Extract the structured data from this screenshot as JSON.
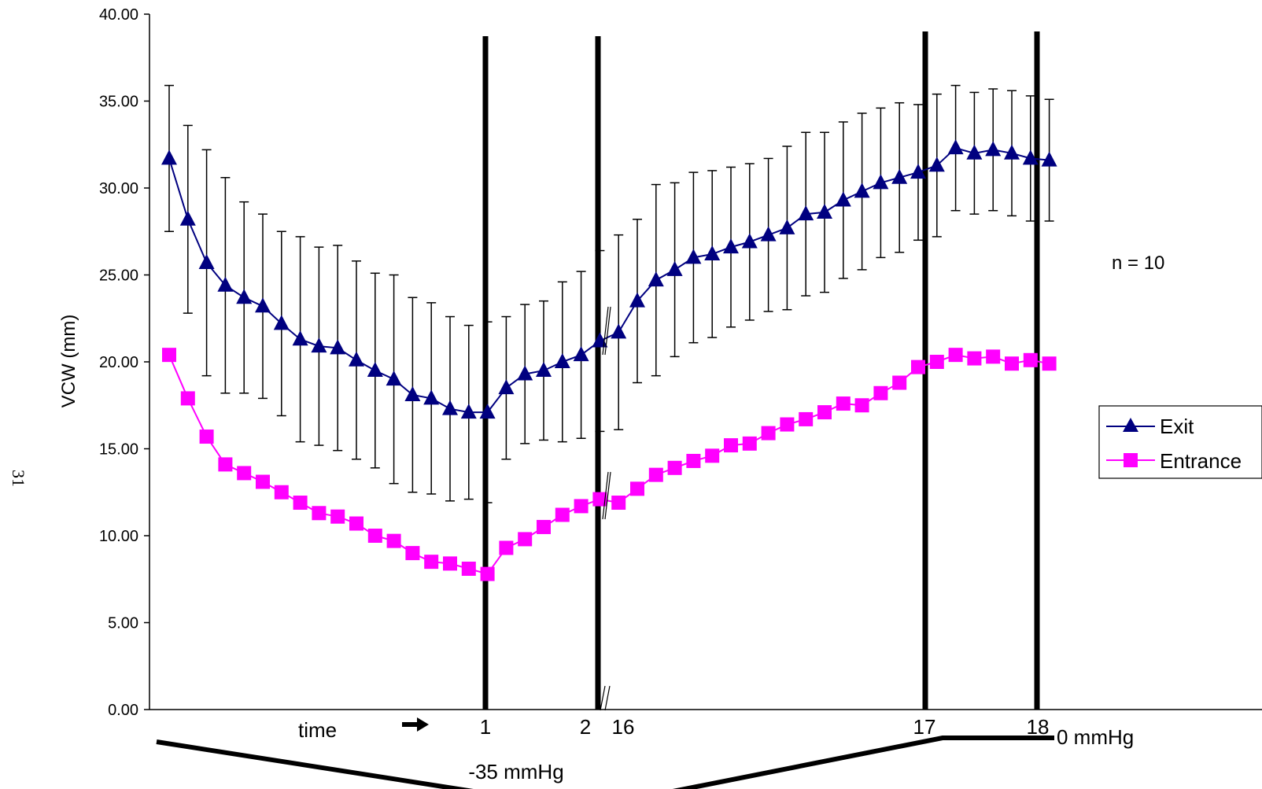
{
  "page_marker": "31",
  "chart_data": {
    "type": "line",
    "ylabel": "VCW (mm)",
    "ylim": [
      0,
      40
    ],
    "ytick_step": 5,
    "ytick_labels": [
      "0.00",
      "5.00",
      "10.00",
      "15.00",
      "20.00",
      "25.00",
      "30.00",
      "35.00",
      "40.00"
    ],
    "grid": false,
    "legend_position": "right",
    "annotation_n": "n = 10",
    "x_labels": {
      "time": "time",
      "m1": "1",
      "m2": "2",
      "m16": "16",
      "m17": "17",
      "m18": "18"
    },
    "pressure_labels": {
      "low": "-35 mmHg",
      "zero": "0 mmHg"
    },
    "series": [
      {
        "name": "Exit",
        "color": "#000080",
        "marker": "triangle",
        "values": [
          31.7,
          28.2,
          25.7,
          24.4,
          23.7,
          23.2,
          22.2,
          21.3,
          20.9,
          20.8,
          20.1,
          19.5,
          19.0,
          18.1,
          17.9,
          17.3,
          17.1,
          17.1,
          18.5,
          19.3,
          19.5,
          20.0,
          20.4,
          21.2,
          21.7,
          23.5,
          24.7,
          25.3,
          26.0,
          26.2,
          26.6,
          26.9,
          27.3,
          27.7,
          28.5,
          28.6,
          29.3,
          29.8,
          30.3,
          30.6,
          30.9,
          31.3,
          32.3,
          32.0,
          32.2,
          32.0,
          31.7,
          31.6
        ],
        "errors": [
          4.2,
          5.4,
          6.5,
          6.2,
          5.5,
          5.3,
          5.3,
          5.9,
          5.7,
          5.9,
          5.7,
          5.6,
          6.0,
          5.6,
          5.5,
          5.3,
          5.0,
          5.2,
          4.1,
          4.0,
          4.0,
          4.6,
          4.8,
          5.2,
          5.6,
          4.7,
          5.5,
          5.0,
          4.9,
          4.8,
          4.6,
          4.5,
          4.4,
          4.7,
          4.7,
          4.6,
          4.5,
          4.5,
          4.3,
          4.3,
          3.9,
          4.1,
          3.6,
          3.5,
          3.5,
          3.6,
          3.6,
          3.5
        ]
      },
      {
        "name": "Entrance",
        "color": "#FF00FF",
        "marker": "square",
        "values": [
          20.4,
          17.9,
          15.7,
          14.1,
          13.6,
          13.1,
          12.5,
          11.9,
          11.3,
          11.1,
          10.7,
          10.0,
          9.7,
          9.0,
          8.5,
          8.4,
          8.1,
          7.8,
          9.3,
          9.8,
          10.5,
          11.2,
          11.7,
          12.1,
          11.9,
          12.7,
          13.5,
          13.9,
          14.3,
          14.6,
          15.2,
          15.3,
          15.9,
          16.4,
          16.7,
          17.1,
          17.6,
          17.5,
          18.2,
          18.8,
          19.7,
          20.0,
          20.4,
          20.2,
          20.3,
          19.9,
          20.1,
          19.9
        ]
      }
    ]
  }
}
